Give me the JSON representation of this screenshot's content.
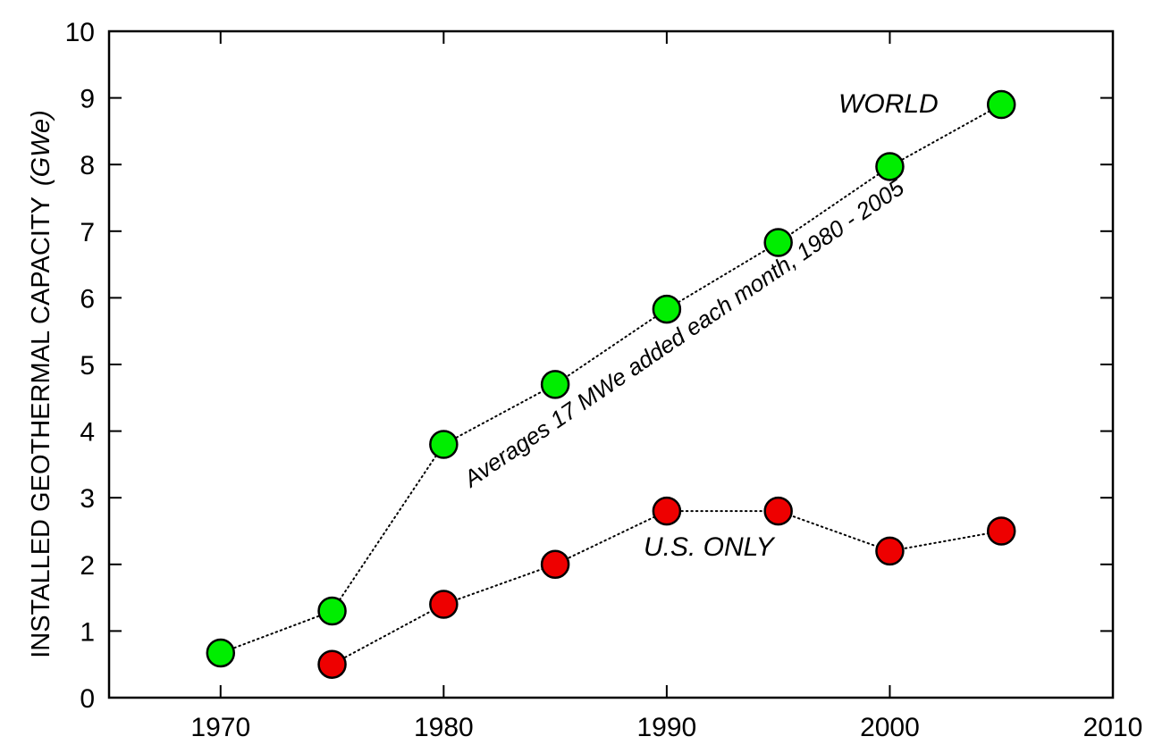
{
  "chart_data": {
    "type": "line",
    "title": "",
    "xlabel": "",
    "ylabel": "INSTALLED GEOTHERMAL CAPACITY",
    "ylabel_unit": "(GWe)",
    "xlim": [
      1965,
      2010
    ],
    "ylim": [
      0,
      10
    ],
    "x_ticks": [
      "1970",
      "1980",
      "1990",
      "2000",
      "2010"
    ],
    "y_ticks": [
      "0",
      "1",
      "2",
      "3",
      "4",
      "5",
      "6",
      "7",
      "8",
      "9",
      "10"
    ],
    "grid": false,
    "series": [
      {
        "name": "WORLD",
        "color": "#00ee00",
        "line_style": "dotted",
        "x": [
          1970,
          1975,
          1980,
          1985,
          1990,
          1995,
          2000,
          2005
        ],
        "y": [
          0.67,
          1.3,
          3.8,
          4.7,
          5.83,
          6.83,
          7.97,
          8.9
        ]
      },
      {
        "name": "U.S. ONLY",
        "color": "#ee0000",
        "line_style": "dotted",
        "x": [
          1975,
          1980,
          1985,
          1990,
          1995,
          2000,
          2005
        ],
        "y": [
          0.5,
          1.4,
          2.0,
          2.8,
          2.8,
          2.2,
          2.5
        ]
      }
    ],
    "annotations": [
      "Averages 17 MWe added each month, 1980 - 2005"
    ]
  }
}
